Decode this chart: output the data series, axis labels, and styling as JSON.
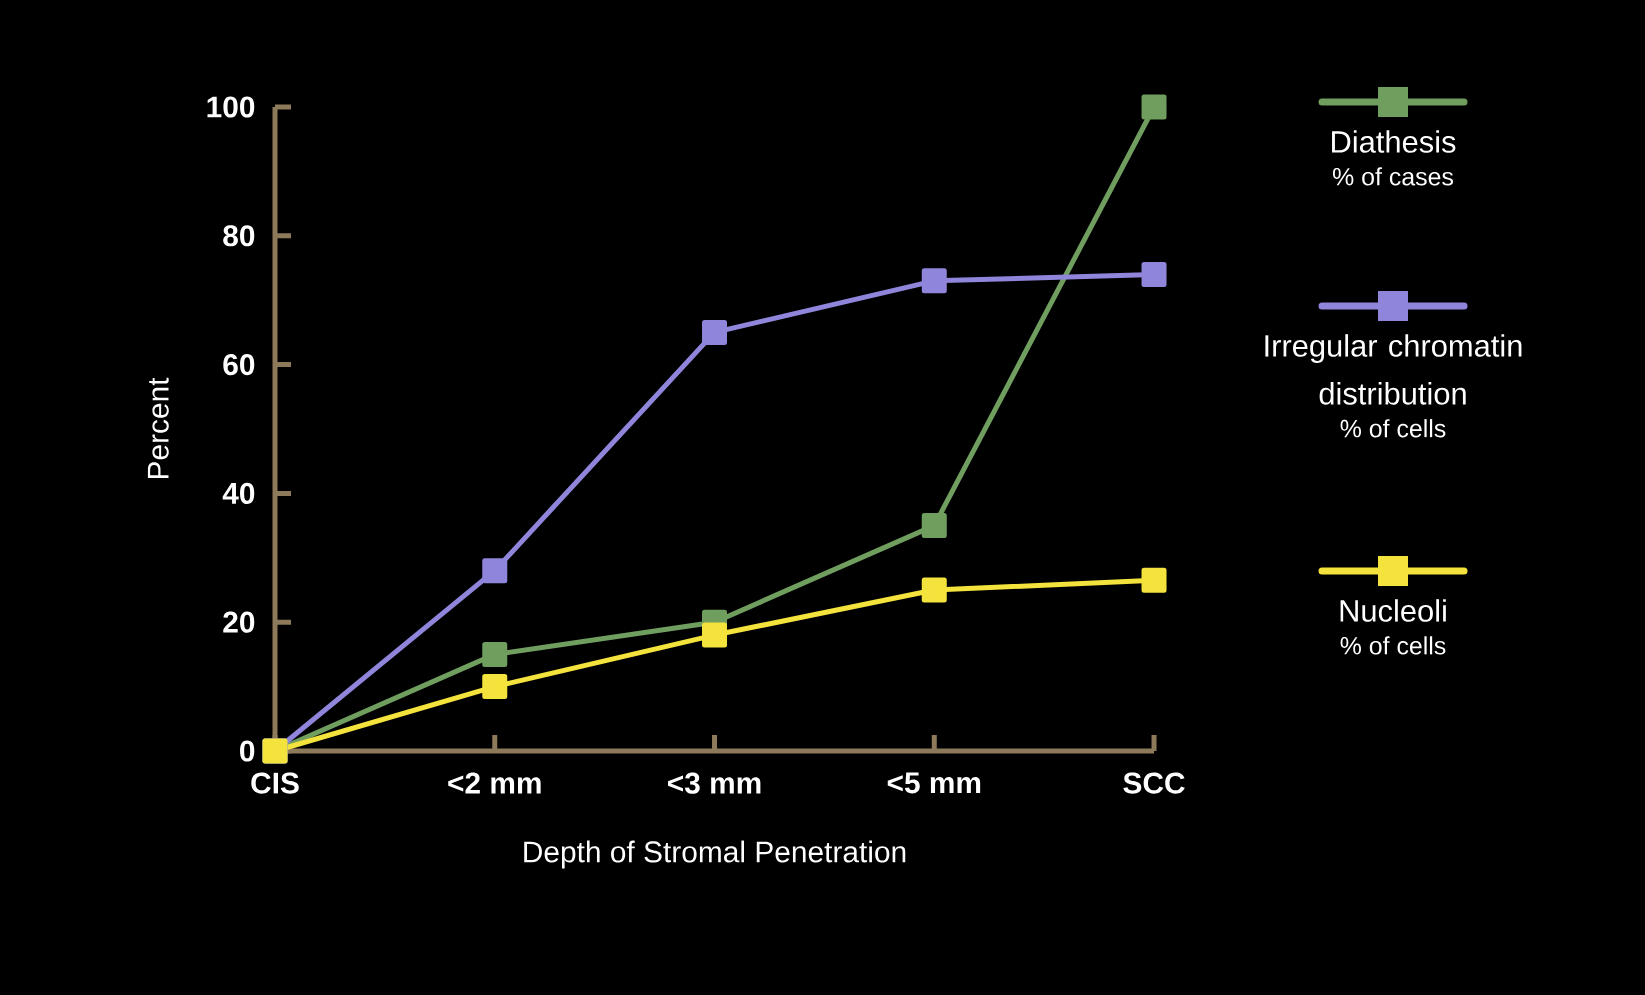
{
  "chart_data": {
    "type": "line",
    "xlabel": "Depth of Stromal Penetration",
    "ylabel": "Percent",
    "categories": [
      "CIS",
      "<2 mm",
      "<3 mm",
      "<5 mm",
      "SCC"
    ],
    "series": [
      {
        "name": "Diathesis",
        "color": "#6f9e5f",
        "values": [
          0,
          15,
          20,
          35,
          100
        ]
      },
      {
        "name": "Irregular chromatin distribution",
        "color": "#8f86dc",
        "values": [
          0,
          28,
          65,
          73,
          74
        ]
      },
      {
        "name": "Nucleoli",
        "color": "#f4e33c",
        "values": [
          0,
          10,
          18,
          25,
          26.5
        ]
      }
    ],
    "annotations": [
      "% of cases",
      "% of cells",
      "% of cells"
    ],
    "ylim": [
      0,
      100
    ],
    "yticks": [
      0,
      20,
      40,
      60,
      80,
      100
    ],
    "grid": false,
    "legend": "right",
    "marker": "square",
    "line_style": "solid"
  }
}
